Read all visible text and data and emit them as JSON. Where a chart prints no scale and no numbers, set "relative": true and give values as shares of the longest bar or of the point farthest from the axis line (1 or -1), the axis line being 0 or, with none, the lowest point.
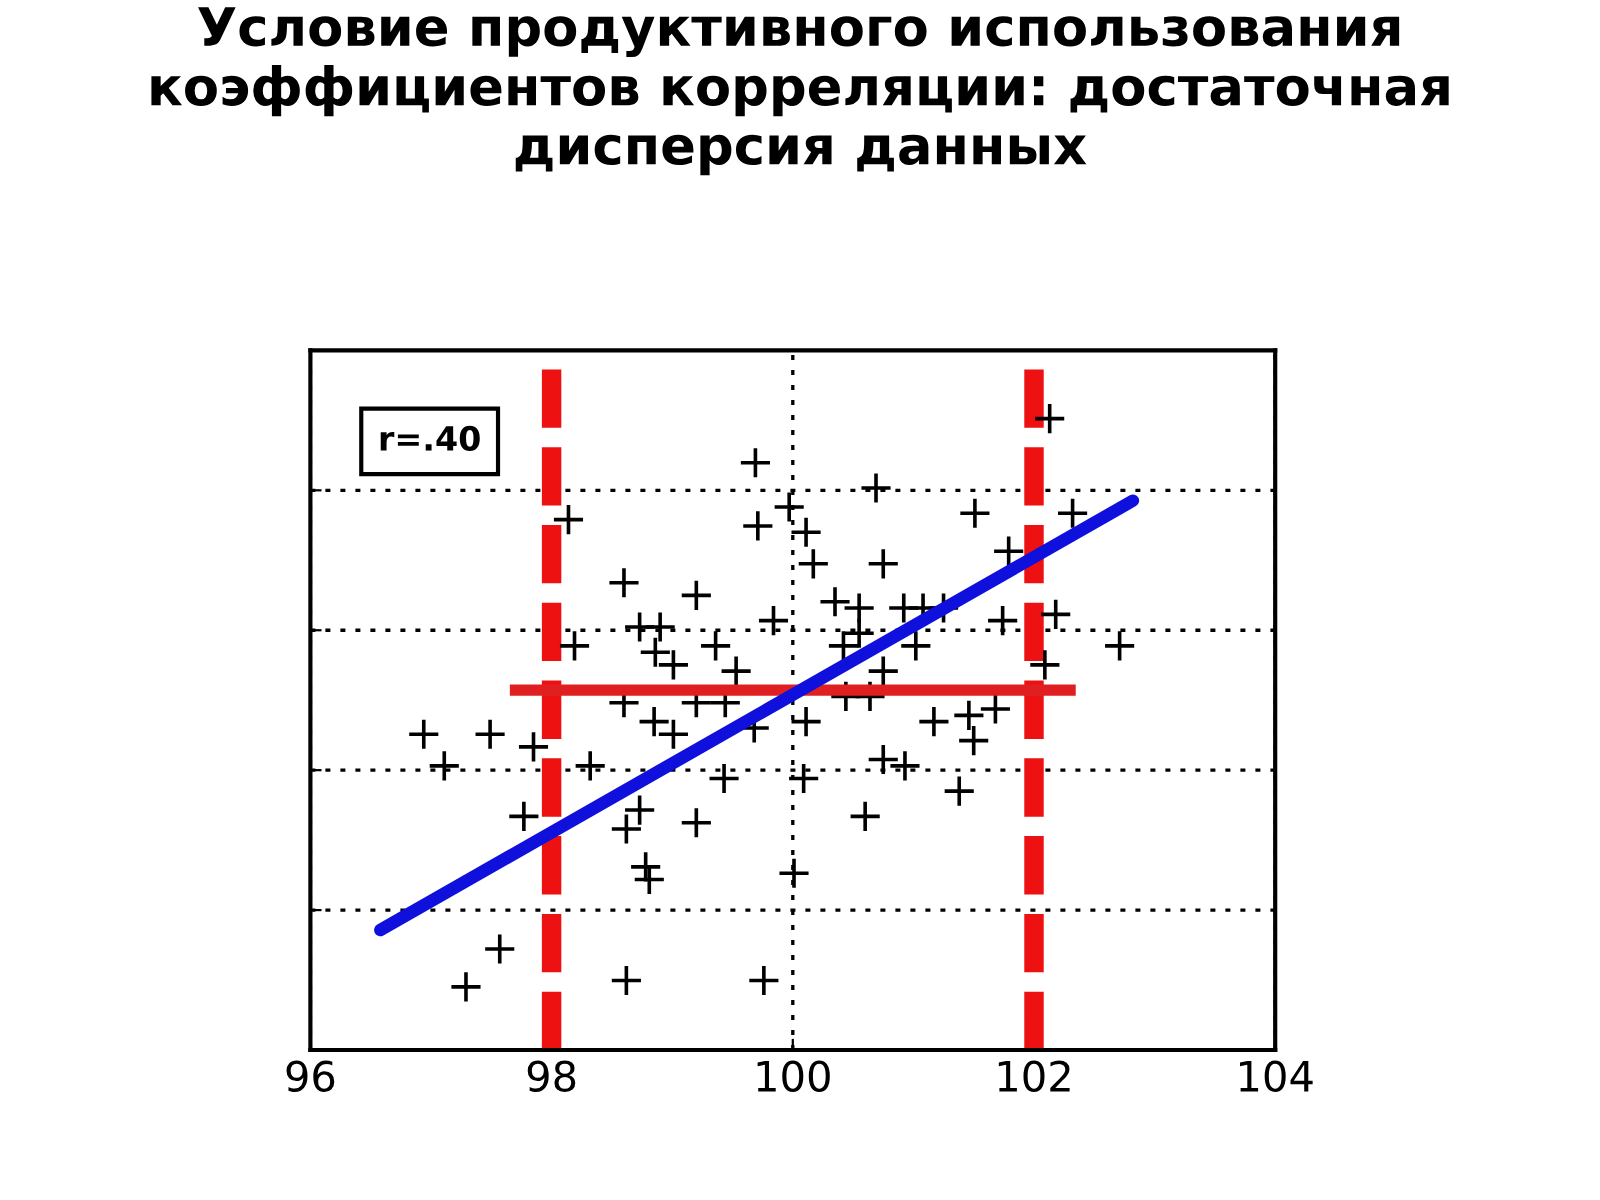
{
  "chart_data": {
    "type": "scatter",
    "title": "Условие продуктивного использования коэффициентов корреляции: достаточная дисперсия данных",
    "relative": true,
    "xlim": [
      96,
      104
    ],
    "xticks": [
      96,
      98,
      100,
      102,
      104
    ],
    "grid": true,
    "annotations": [
      "r=.40"
    ],
    "ref_lines": [
      {
        "axis": "y",
        "value": 0.57,
        "color": "#e02020"
      },
      {
        "axis": "x",
        "value": 98,
        "color": "#ee1111",
        "line_style": "dashed"
      },
      {
        "axis": "x",
        "value": 102,
        "color": "#ee1111",
        "line_style": "dashed"
      }
    ],
    "series": [
      {
        "color": "#000000",
        "marker": "cross",
        "x": [
          99.69,
          98.14,
          99.71,
          99.97,
          98.6,
          99.2,
          98.73,
          98.9,
          98.19,
          99.36,
          99.84,
          98.86,
          99.01,
          99.53,
          102.13,
          100.69,
          100.11,
          101.51,
          102.32,
          100.17,
          100.75,
          101.79,
          100.35,
          100.55,
          100.92,
          101.08,
          101.25,
          101.74,
          102.18,
          102.71,
          101.02,
          100.55,
          100.75,
          102.09,
          100.42,
          96.94,
          97.49,
          97.11,
          97.85,
          98.32,
          98.6,
          99.01,
          98.85,
          99.43,
          99.68,
          99.2,
          99.44,
          98.73,
          98.62,
          99.2,
          97.77,
          98.78,
          98.81,
          100.01,
          97.57,
          97.29,
          98.62,
          99.76,
          100.11,
          100.44,
          100.64,
          101.17,
          101.46,
          101.68,
          101.5,
          100.09,
          100.75,
          100.93,
          101.38,
          100.6
        ],
        "values": [
          0.93,
          0.84,
          0.83,
          0.86,
          0.74,
          0.72,
          0.67,
          0.67,
          0.64,
          0.64,
          0.68,
          0.63,
          0.61,
          0.6,
          1.0,
          0.89,
          0.82,
          0.85,
          0.85,
          0.77,
          0.77,
          0.79,
          0.71,
          0.7,
          0.7,
          0.7,
          0.7,
          0.68,
          0.69,
          0.64,
          0.64,
          0.66,
          0.6,
          0.61,
          0.64,
          0.5,
          0.5,
          0.45,
          0.48,
          0.45,
          0.55,
          0.5,
          0.52,
          0.43,
          0.51,
          0.55,
          0.55,
          0.38,
          0.35,
          0.36,
          0.37,
          0.29,
          0.27,
          0.28,
          0.16,
          0.1,
          0.11,
          0.11,
          0.52,
          0.56,
          0.56,
          0.52,
          0.53,
          0.54,
          0.49,
          0.43,
          0.46,
          0.45,
          0.41,
          0.37
        ]
      },
      {
        "type": "line",
        "color": "#1010dd",
        "x": [
          96.58,
          102.82
        ],
        "values": [
          0.19,
          0.87
        ]
      }
    ]
  }
}
